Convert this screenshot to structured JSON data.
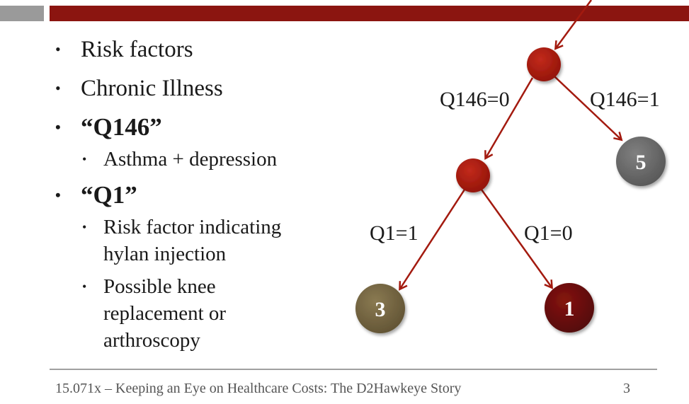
{
  "header": {
    "gray_bar_color": "#9a9a9a",
    "red_bar_color": "#8b1510"
  },
  "bullets": {
    "risk_factors": "Risk factors",
    "chronic_illness": "Chronic Illness",
    "q146": "“Q146”",
    "q146_sub": "Asthma + depression",
    "q1": "“Q1”",
    "q1_sub1_line1": "Risk factor indicating",
    "q1_sub1_line2": "hylan injection",
    "q1_sub2_line1": "Possible knee",
    "q1_sub2_line2": "replacement or",
    "q1_sub2_line3": "arthroscopy"
  },
  "tree": {
    "edge_left_top": "Q146=0",
    "edge_right_top": "Q146=1",
    "edge_left_mid": "Q1=1",
    "edge_right_mid": "Q1=0",
    "leaf_5": "5",
    "leaf_3": "3",
    "leaf_1": "1",
    "colors": {
      "split_node": "#a31a0f",
      "leaf_5": "#6b6b6b",
      "leaf_3": "#7a6a45",
      "leaf_1": "#6e0f0c",
      "arrow": "#a31a0f"
    }
  },
  "footer": {
    "text": "15.071x – Keeping an Eye on Healthcare Costs: The D2Hawkeye Story",
    "page_number": "3"
  }
}
